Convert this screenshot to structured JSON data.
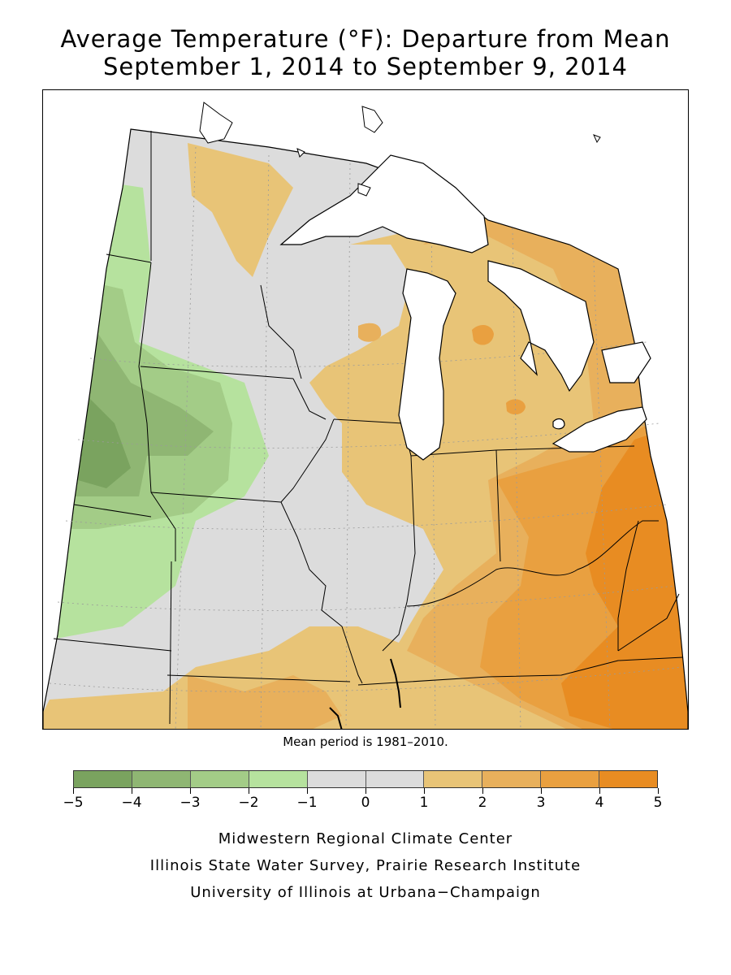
{
  "title": {
    "line1": "Average Temperature (°F): Departure from Mean",
    "line2": "September 1, 2014 to September 9, 2014"
  },
  "mean_note": "Mean period is 1981–2010.",
  "legend": {
    "tick_labels": [
      "−5",
      "−4",
      "−3",
      "−2",
      "−1",
      "0",
      "1",
      "2",
      "3",
      "4",
      "5"
    ],
    "colors": [
      "#7aa35f",
      "#8fb673",
      "#a3cc87",
      "#b6e29e",
      "#dcdcdc",
      "#dcdcdc",
      "#e8c477",
      "#e8b05c",
      "#e9a040",
      "#e88c22"
    ]
  },
  "colors": {
    "lake": "#ffffff",
    "border": "#000000",
    "grid": "#9a9a9a"
  },
  "credits": {
    "line1": "Midwestern Regional Climate Center",
    "line2": "Illinois State Water Survey, Prairie Research Institute",
    "line3": "University of Illinois at Urbana−Champaign"
  }
}
